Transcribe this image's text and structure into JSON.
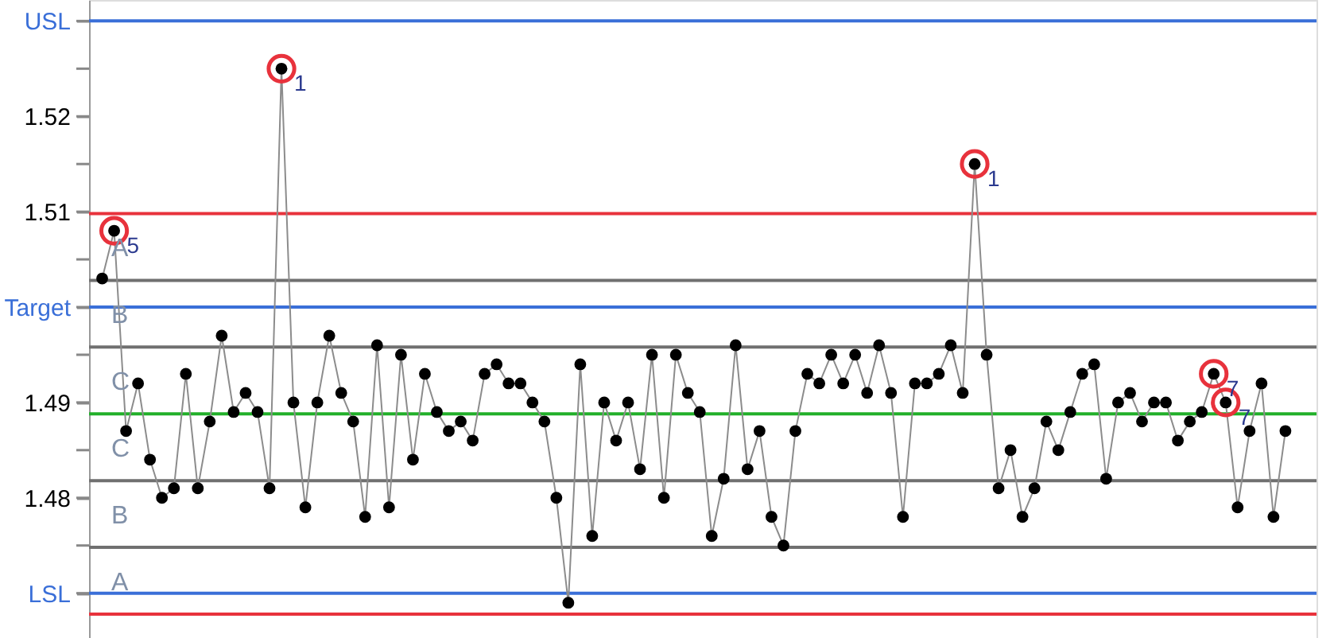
{
  "chart_data": {
    "type": "line",
    "categories": [
      null,
      null,
      null,
      null,
      null,
      null,
      null,
      null,
      null,
      null,
      null,
      null,
      null,
      null,
      null,
      null,
      null,
      null,
      null,
      null,
      null,
      null,
      null,
      null,
      null,
      null,
      null,
      null,
      null,
      null,
      null,
      null,
      null,
      null,
      null,
      null,
      null,
      null,
      null,
      null,
      null,
      null,
      null,
      null,
      null,
      null,
      null,
      null,
      null,
      null,
      null,
      null,
      null,
      null,
      null,
      null,
      null,
      null,
      null,
      null,
      null,
      null,
      null,
      null,
      null,
      null,
      null,
      null,
      null,
      null,
      null,
      null,
      null,
      null,
      null,
      null,
      null,
      null,
      null,
      null,
      null,
      null,
      null,
      null,
      null,
      null,
      null,
      null,
      null,
      null,
      null,
      null,
      null,
      null,
      null,
      null,
      null,
      null,
      null,
      null
    ],
    "series": [
      {
        "color": "#000000",
        "marker": "circle",
        "values": [
          1.503,
          1.508,
          1.487,
          1.492,
          1.484,
          1.48,
          1.481,
          1.493,
          1.481,
          1.488,
          1.497,
          1.489,
          1.491,
          1.489,
          1.481,
          1.525,
          1.49,
          1.479,
          1.49,
          1.497,
          1.491,
          1.488,
          1.478,
          1.496,
          1.479,
          1.495,
          1.484,
          1.493,
          1.489,
          1.487,
          1.488,
          1.486,
          1.493,
          1.494,
          1.492,
          1.492,
          1.49,
          1.488,
          1.48,
          1.469,
          1.494,
          1.476,
          1.49,
          1.486,
          1.49,
          1.483,
          1.495,
          1.48,
          1.495,
          1.491,
          1.489,
          1.476,
          1.482,
          1.496,
          1.483,
          1.487,
          1.478,
          1.475,
          1.487,
          1.493,
          1.492,
          1.495,
          1.492,
          1.495,
          1.491,
          1.496,
          1.491,
          1.478,
          1.492,
          1.492,
          1.493,
          1.496,
          1.491,
          1.515,
          1.495,
          1.481,
          1.485,
          1.478,
          1.481,
          1.488,
          1.485,
          1.489,
          1.493,
          1.494,
          1.482,
          1.49,
          1.491,
          1.488,
          1.49,
          1.49,
          1.486,
          1.488,
          1.489,
          1.493,
          1.49,
          1.479,
          1.487,
          1.492,
          1.478,
          1.487
        ]
      },
      {
        "type": "scatter",
        "color": "#e8323c",
        "marker": "circle",
        "values": [
          null,
          1.508,
          null,
          null,
          null,
          null,
          null,
          null,
          null,
          null,
          null,
          null,
          null,
          null,
          null,
          1.525,
          null,
          null,
          null,
          null,
          null,
          null,
          null,
          null,
          null,
          null,
          null,
          null,
          null,
          null,
          null,
          null,
          null,
          null,
          null,
          null,
          null,
          null,
          null,
          null,
          null,
          null,
          null,
          null,
          null,
          null,
          null,
          null,
          null,
          null,
          null,
          null,
          null,
          null,
          null,
          null,
          null,
          null,
          null,
          null,
          null,
          null,
          null,
          null,
          null,
          null,
          null,
          null,
          null,
          null,
          null,
          null,
          null,
          1.515,
          null,
          null,
          null,
          null,
          null,
          null,
          null,
          null,
          null,
          null,
          null,
          null,
          null,
          null,
          null,
          null,
          null,
          null,
          null,
          1.493,
          1.49,
          null,
          null,
          null,
          null,
          null
        ]
      }
    ],
    "ylim": [
      1.4653,
      1.5322
    ],
    "yticks": [
      {
        "value": 1.53,
        "label": "USL"
      },
      {
        "value": 1.525,
        "label": null
      },
      1.52,
      {
        "value": 1.515,
        "label": null
      },
      1.51,
      {
        "value": 1.505,
        "label": null
      },
      {
        "value": 1.5,
        "label": "Target"
      },
      {
        "value": 1.495,
        "label": null
      },
      1.49,
      {
        "value": 1.485,
        "label": null
      },
      1.48,
      {
        "value": 1.475,
        "label": null
      },
      {
        "value": 1.47,
        "label": "LSL"
      }
    ],
    "ref_lines": [
      {
        "axis": "y",
        "value": 1.53,
        "color": "#3a6fd8"
      },
      {
        "axis": "y",
        "value": 1.5,
        "color": "#3a6fd8"
      },
      {
        "axis": "y",
        "value": 1.47,
        "color": "#3a6fd8"
      },
      {
        "axis": "y",
        "value": 1.5028,
        "color": "#707070"
      },
      {
        "axis": "y",
        "value": 1.4958,
        "color": "#707070"
      },
      {
        "axis": "y",
        "value": 1.4818,
        "color": "#707070"
      },
      {
        "axis": "y",
        "value": 1.4748,
        "color": "#707070"
      },
      {
        "axis": "y",
        "value": 1.5098,
        "color": "#e8323c"
      },
      {
        "axis": "y",
        "value": 1.4678,
        "color": "#e8323c"
      },
      {
        "axis": "y",
        "value": 1.4888,
        "color": "#22b02a"
      }
    ],
    "annotations": [
      "A",
      "B",
      "C",
      "C",
      "B",
      "A",
      {
        "text": "5",
        "y": 1.508
      },
      {
        "text": "1",
        "y": 1.525
      },
      {
        "text": "1",
        "y": 1.515
      },
      {
        "text": "7",
        "y": 1.493
      },
      {
        "text": "7",
        "y": 1.49
      }
    ],
    "grid": false,
    "tick_labels": "y"
  }
}
